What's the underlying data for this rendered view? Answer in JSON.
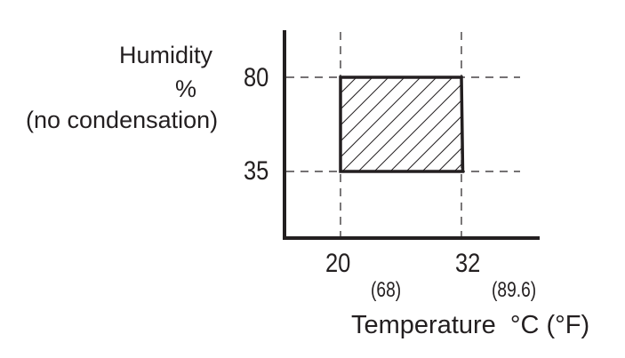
{
  "chart_data": {
    "type": "area",
    "description_free": true,
    "ylabel_lines": [
      "Humidity",
      "%",
      "(no condensation)"
    ],
    "xlabel": "Temperature  °C (°F)",
    "x_ticks": [
      {
        "value": 20,
        "label": "20",
        "alt_label": "(68)"
      },
      {
        "value": 32,
        "label": "32",
        "alt_label": "(89.6)"
      }
    ],
    "y_ticks": [
      {
        "value": 80,
        "label": "80"
      },
      {
        "value": 35,
        "label": "35"
      }
    ],
    "region": {
      "x": [
        20,
        32
      ],
      "y": [
        35,
        80
      ],
      "fill": "hatched"
    },
    "grid": "dashed reference lines at tick values",
    "color": "#231f20"
  }
}
